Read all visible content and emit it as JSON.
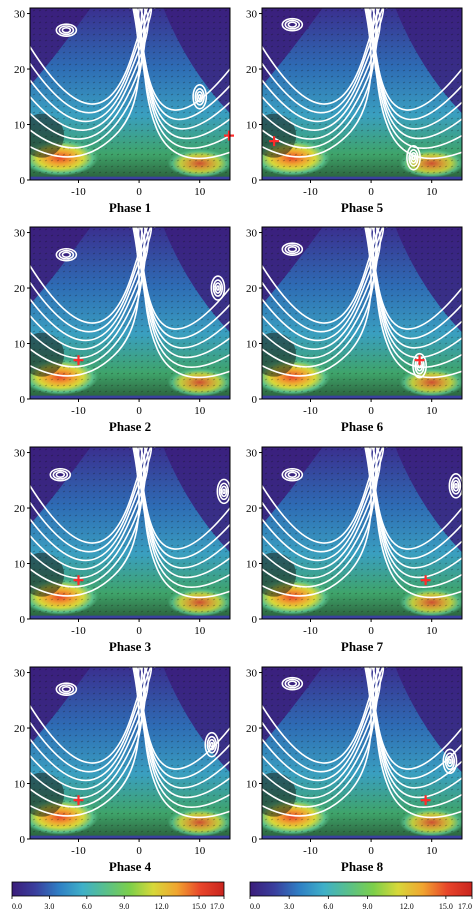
{
  "colors": {
    "colormap": [
      "#3b1d7a",
      "#3a3f9e",
      "#2f7fc4",
      "#3fb0c8",
      "#59c08a",
      "#7ccf4a",
      "#d7d83a",
      "#f0a530",
      "#e8452a",
      "#c9241e"
    ],
    "streamline": "#ffffff",
    "marker": "#ff2a2a",
    "background_field": "#2f6fb6"
  },
  "chart_data": {
    "type": "heatmap",
    "description_free": true,
    "panel_layout": {
      "columns": 2,
      "rows": 4
    },
    "x_range": [
      -18,
      15
    ],
    "y_range": [
      0,
      31
    ],
    "x_ticks": [
      -10,
      0,
      10
    ],
    "y_ticks": [
      0,
      10,
      20,
      30
    ],
    "x_tick_labels": [
      "-10",
      "0",
      "10"
    ],
    "y_tick_labels": [
      "0",
      "10",
      "20",
      "30"
    ],
    "panels": [
      {
        "label": "Phase 1",
        "marker": {
          "x": 15,
          "y": 8
        },
        "vortex_upper": {
          "x": -12,
          "y": 27
        },
        "vortex_right": {
          "x": 10,
          "y": 15
        }
      },
      {
        "label": "Phase 2",
        "marker": {
          "x": -10,
          "y": 7
        },
        "vortex_upper": {
          "x": -12,
          "y": 26
        },
        "vortex_right": {
          "x": 13,
          "y": 20
        }
      },
      {
        "label": "Phase 3",
        "marker": {
          "x": -10,
          "y": 7
        },
        "vortex_upper": {
          "x": -13,
          "y": 26
        },
        "vortex_right": {
          "x": 14,
          "y": 23
        }
      },
      {
        "label": "Phase 4",
        "marker": {
          "x": -10,
          "y": 7
        },
        "vortex_upper": {
          "x": -12,
          "y": 27
        },
        "vortex_right": {
          "x": 12,
          "y": 17
        }
      },
      {
        "label": "Phase 5",
        "marker": {
          "x": -16,
          "y": 7
        },
        "vortex_upper": {
          "x": -13,
          "y": 28
        },
        "vortex_right": {
          "x": 7,
          "y": 4
        }
      },
      {
        "label": "Phase 6",
        "marker": {
          "x": 8,
          "y": 7
        },
        "vortex_upper": {
          "x": -13,
          "y": 27
        },
        "vortex_right": {
          "x": 8,
          "y": 6
        }
      },
      {
        "label": "Phase 7",
        "marker": {
          "x": 9,
          "y": 7
        },
        "vortex_upper": {
          "x": -13,
          "y": 26
        },
        "vortex_right": {
          "x": 14,
          "y": 24
        }
      },
      {
        "label": "Phase 8",
        "marker": {
          "x": 9,
          "y": 7
        },
        "vortex_upper": {
          "x": -13,
          "y": 28
        },
        "vortex_right": {
          "x": 13,
          "y": 14
        }
      }
    ],
    "colorbar": {
      "range": [
        0,
        17
      ],
      "ticks": [
        0,
        3,
        6,
        9,
        12,
        15,
        17
      ],
      "tick_labels": [
        "0.0",
        "3.0",
        "6.0",
        "9.0",
        "12.0",
        "15.0",
        "17.0"
      ]
    }
  }
}
